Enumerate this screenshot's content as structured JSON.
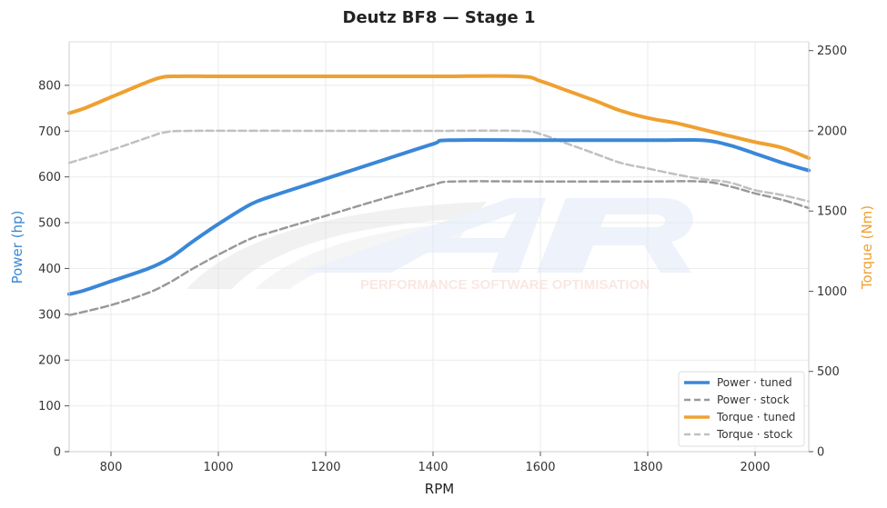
{
  "chart_data": {
    "type": "line",
    "title": "Deutz BF8 — Stage 1",
    "xlabel": "RPM",
    "ylabel_left": "Power (hp)",
    "ylabel_right": "Torque (Nm)",
    "xlim": [
      722,
      2100
    ],
    "ylim_left": [
      0,
      895
    ],
    "ylim_right": [
      0,
      2555
    ],
    "x_ticks": [
      800,
      1000,
      1200,
      1400,
      1600,
      1800,
      2000
    ],
    "y_ticks_left": [
      0,
      100,
      200,
      300,
      400,
      500,
      600,
      700,
      800
    ],
    "y_ticks_right": [
      0,
      500,
      1000,
      1500,
      2000,
      2500
    ],
    "grid": true,
    "legend_position": "lower-right",
    "watermark_text": "PERFORMANCE SOFTWARE OPTIMISATION",
    "series": [
      {
        "name": "Power · tuned",
        "axis": "left",
        "color": "#3a87d8",
        "dash": "solid",
        "x": [
          722,
          750,
          800,
          870,
          910,
          950,
          1000,
          1060,
          1100,
          1200,
          1300,
          1400,
          1430,
          1600,
          1800,
          1900,
          1950,
          2000,
          2050,
          2100
        ],
        "y": [
          344,
          352,
          372,
          400,
          423,
          457,
          497,
          540,
          558,
          596,
          634,
          672,
          680,
          680,
          680,
          680,
          670,
          651,
          631,
          614
        ]
      },
      {
        "name": "Power · stock",
        "axis": "left",
        "color": "#999999",
        "dash": "dashed",
        "x": [
          722,
          800,
          870,
          910,
          950,
          1000,
          1060,
          1100,
          1200,
          1300,
          1400,
          1440,
          1600,
          1800,
          1900,
          1950,
          2000,
          2050,
          2100
        ],
        "y": [
          298,
          320,
          347,
          370,
          398,
          430,
          465,
          480,
          515,
          550,
          583,
          590,
          590,
          590,
          590,
          580,
          564,
          550,
          532
        ]
      },
      {
        "name": "Torque · tuned",
        "axis": "right",
        "color": "#f0a030",
        "dash": "solid",
        "x": [
          722,
          750,
          800,
          850,
          890,
          920,
          1000,
          1200,
          1400,
          1560,
          1600,
          1650,
          1700,
          1750,
          1800,
          1850,
          1900,
          1950,
          2000,
          2050,
          2100
        ],
        "y": [
          2110,
          2140,
          2210,
          2280,
          2330,
          2340,
          2340,
          2340,
          2340,
          2340,
          2310,
          2250,
          2190,
          2125,
          2080,
          2050,
          2010,
          1970,
          1930,
          1895,
          1830
        ]
      },
      {
        "name": "Torque · stock",
        "axis": "right",
        "color": "#c0c0c0",
        "dash": "dashed",
        "x": [
          722,
          800,
          870,
          900,
          950,
          1200,
          1400,
          1560,
          1600,
          1650,
          1700,
          1750,
          1800,
          1850,
          1900,
          1950,
          2000,
          2050,
          2100
        ],
        "y": [
          1800,
          1880,
          1960,
          1990,
          2000,
          2000,
          2000,
          2000,
          1980,
          1920,
          1860,
          1800,
          1765,
          1730,
          1700,
          1680,
          1630,
          1600,
          1560
        ]
      }
    ]
  }
}
